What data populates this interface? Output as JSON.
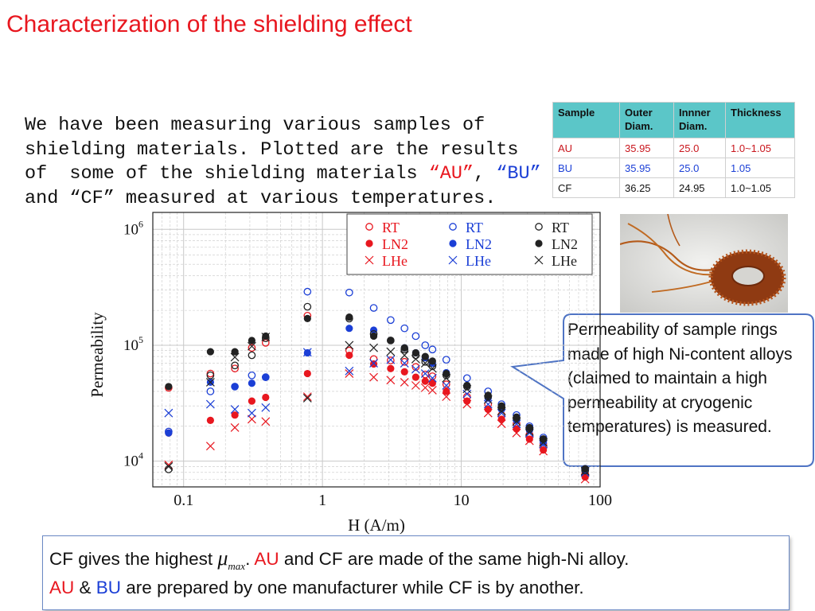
{
  "slide": {
    "title": "Characterization of the shielding effect",
    "intro_parts": [
      "We have been measuring various samples of shielding materials. Plotted are the results of  some of the shielding materials ",
      "“AU”",
      ", ",
      "“BU”",
      "  and “CF” measured at various temperatures."
    ]
  },
  "table": {
    "headers": [
      "Sample",
      "Outer Diam.",
      "Innner Diam.",
      "Thickness"
    ],
    "rows": [
      [
        "AU",
        "35.95",
        "25.0",
        "1.0~1.05"
      ],
      [
        "BU",
        "35.95",
        "25.0",
        "1.05"
      ],
      [
        "CF",
        "36.25",
        "24.95",
        "1.0~1.05"
      ]
    ]
  },
  "callout": {
    "text": "Permeability of sample rings made of high Ni-content alloys (claimed to maintain a high permeability at cryogenic temperatures) is measured."
  },
  "bottom": {
    "line1_a": "CF gives the highest ",
    "mu_symbol": "μ",
    "mu_sub": "max",
    "line1_b": ".   ",
    "au": "AU",
    "line1_c": " and CF are made of the same high-Ni alloy.",
    "line2_b": " & ",
    "bu": "BU",
    "line2_c": " are prepared by one manufacturer while CF is by another."
  },
  "colors": {
    "au": "#e8171f",
    "bu": "#1b3fd6",
    "cf": "#222222"
  },
  "chart_data": {
    "type": "scatter",
    "xlabel": "H (A/m)",
    "ylabel": "Permeability",
    "xscale": "log",
    "yscale": "log",
    "xlim": [
      0.06,
      100
    ],
    "ylim": [
      6000,
      1400000
    ],
    "xticks": [
      {
        "v": 0.1,
        "label": "0.1"
      },
      {
        "v": 1,
        "label": "1"
      },
      {
        "v": 10,
        "label": "10"
      },
      {
        "v": 100,
        "label": "100"
      }
    ],
    "yticks": [
      {
        "v": 10000,
        "base": "10",
        "exp": "4"
      },
      {
        "v": 100000,
        "base": "10",
        "exp": "5"
      },
      {
        "v": 1000000,
        "base": "10",
        "exp": "6"
      }
    ],
    "grid": true,
    "legend_position": "top-right",
    "series": [
      {
        "name": "RT",
        "sample": "AU",
        "color": "#e8171f",
        "marker": "open-circle",
        "points": [
          [
            0.078,
            43000
          ],
          [
            0.156,
            57000
          ],
          [
            0.234,
            63000
          ],
          [
            0.31,
            95000
          ],
          [
            0.39,
            105000
          ],
          [
            0.78,
            180000
          ],
          [
            1.56,
            90000
          ],
          [
            2.34,
            76000
          ],
          [
            3.1,
            74000
          ],
          [
            3.9,
            72000
          ],
          [
            4.7,
            65000
          ],
          [
            5.5,
            56000
          ],
          [
            6.2,
            54000
          ],
          [
            7.8,
            46000
          ],
          [
            11,
            36000
          ],
          [
            15.6,
            31000
          ],
          [
            19.5,
            25000
          ],
          [
            25,
            21000
          ],
          [
            31,
            17000
          ],
          [
            39,
            14000
          ],
          [
            78,
            7700
          ]
        ]
      },
      {
        "name": "LN2",
        "sample": "AU",
        "color": "#e8171f",
        "marker": "filled-circle",
        "points": [
          [
            0.078,
            17500
          ],
          [
            0.156,
            22500
          ],
          [
            0.234,
            25000
          ],
          [
            0.31,
            33000
          ],
          [
            0.39,
            35500
          ],
          [
            0.78,
            57000
          ],
          [
            1.56,
            82000
          ],
          [
            2.34,
            69000
          ],
          [
            3.1,
            63000
          ],
          [
            3.9,
            59000
          ],
          [
            4.7,
            53000
          ],
          [
            5.5,
            49000
          ],
          [
            6.2,
            47000
          ],
          [
            7.8,
            40000
          ],
          [
            11,
            33000
          ],
          [
            15.6,
            28000
          ],
          [
            19.5,
            23000
          ],
          [
            25,
            19000
          ],
          [
            31,
            15500
          ],
          [
            39,
            12500
          ],
          [
            78,
            7300
          ]
        ]
      },
      {
        "name": "LHe",
        "sample": "AU",
        "color": "#e8171f",
        "marker": "x",
        "points": [
          [
            0.078,
            9300
          ],
          [
            0.156,
            13500
          ],
          [
            0.234,
            19500
          ],
          [
            0.31,
            23000
          ],
          [
            0.39,
            22000
          ],
          [
            0.78,
            36000
          ],
          [
            1.56,
            57000
          ],
          [
            2.34,
            53000
          ],
          [
            3.1,
            50000
          ],
          [
            3.9,
            48000
          ],
          [
            4.7,
            45000
          ],
          [
            5.5,
            43000
          ],
          [
            6.2,
            41000
          ],
          [
            7.8,
            36000
          ],
          [
            11,
            31000
          ],
          [
            15.6,
            26000
          ],
          [
            19.5,
            21000
          ],
          [
            25,
            17500
          ],
          [
            31,
            15000
          ],
          [
            39,
            12200
          ],
          [
            78,
            7000
          ]
        ]
      },
      {
        "name": "RT",
        "sample": "BU",
        "color": "#1b3fd6",
        "marker": "open-circle",
        "points": [
          [
            0.078,
            18000
          ],
          [
            0.156,
            40000
          ],
          [
            0.234,
            44000
          ],
          [
            0.31,
            55000
          ],
          [
            0.39,
            53000
          ],
          [
            0.78,
            290000
          ],
          [
            1.56,
            285000
          ],
          [
            2.34,
            210000
          ],
          [
            3.1,
            165000
          ],
          [
            3.9,
            140000
          ],
          [
            4.7,
            120000
          ],
          [
            5.5,
            100000
          ],
          [
            6.2,
            92000
          ],
          [
            7.8,
            75000
          ],
          [
            11,
            52000
          ],
          [
            15.6,
            40000
          ],
          [
            19.5,
            31000
          ],
          [
            25,
            25000
          ],
          [
            31,
            20000
          ],
          [
            39,
            16000
          ],
          [
            78,
            8600
          ]
        ]
      },
      {
        "name": "LN2",
        "sample": "BU",
        "color": "#1b3fd6",
        "marker": "filled-circle",
        "points": [
          [
            0.078,
            17500
          ],
          [
            0.156,
            48000
          ],
          [
            0.234,
            44000
          ],
          [
            0.31,
            47000
          ],
          [
            0.39,
            53000
          ],
          [
            0.78,
            86000
          ],
          [
            1.56,
            140000
          ],
          [
            2.34,
            135000
          ],
          [
            3.1,
            110000
          ],
          [
            3.9,
            95000
          ],
          [
            4.7,
            86000
          ],
          [
            5.5,
            78000
          ],
          [
            6.2,
            70000
          ],
          [
            7.8,
            58000
          ],
          [
            11,
            45000
          ],
          [
            15.6,
            35000
          ],
          [
            19.5,
            28000
          ],
          [
            25,
            22500
          ],
          [
            31,
            18500
          ],
          [
            39,
            14500
          ],
          [
            78,
            8300
          ]
        ]
      },
      {
        "name": "LHe",
        "sample": "BU",
        "color": "#1b3fd6",
        "marker": "x",
        "points": [
          [
            0.078,
            26000
          ],
          [
            0.156,
            31000
          ],
          [
            0.234,
            28000
          ],
          [
            0.31,
            26000
          ],
          [
            0.39,
            29000
          ],
          [
            0.78,
            87000
          ],
          [
            1.56,
            60000
          ],
          [
            2.34,
            70000
          ],
          [
            3.1,
            75000
          ],
          [
            3.9,
            70000
          ],
          [
            4.7,
            62000
          ],
          [
            5.5,
            57000
          ],
          [
            6.2,
            52000
          ],
          [
            7.8,
            45000
          ],
          [
            11,
            38000
          ],
          [
            15.6,
            31000
          ],
          [
            19.5,
            26000
          ],
          [
            25,
            21000
          ],
          [
            31,
            17500
          ],
          [
            39,
            14000
          ],
          [
            78,
            8000
          ]
        ]
      },
      {
        "name": "RT",
        "sample": "CF",
        "color": "#222222",
        "marker": "open-circle",
        "points": [
          [
            0.078,
            8500
          ],
          [
            0.156,
            55000
          ],
          [
            0.234,
            67000
          ],
          [
            0.31,
            82000
          ],
          [
            0.39,
            115000
          ],
          [
            0.78,
            215000
          ],
          [
            1.56,
            170000
          ],
          [
            2.34,
            125000
          ],
          [
            3.1,
            110000
          ],
          [
            3.9,
            92000
          ],
          [
            4.7,
            82000
          ],
          [
            5.5,
            72000
          ],
          [
            6.2,
            66000
          ],
          [
            7.8,
            55000
          ],
          [
            11,
            44000
          ],
          [
            15.6,
            36000
          ],
          [
            19.5,
            29000
          ],
          [
            25,
            23500
          ],
          [
            31,
            19000
          ],
          [
            39,
            15500
          ],
          [
            78,
            8300
          ]
        ]
      },
      {
        "name": "LN2",
        "sample": "CF",
        "color": "#222222",
        "marker": "filled-circle",
        "points": [
          [
            0.078,
            44000
          ],
          [
            0.156,
            88000
          ],
          [
            0.234,
            88000
          ],
          [
            0.31,
            110000
          ],
          [
            0.39,
            120000
          ],
          [
            0.78,
            170000
          ],
          [
            1.56,
            175000
          ],
          [
            2.34,
            120000
          ],
          [
            3.1,
            110000
          ],
          [
            3.9,
            95000
          ],
          [
            4.7,
            86000
          ],
          [
            5.5,
            80000
          ],
          [
            6.2,
            73000
          ],
          [
            7.8,
            57000
          ],
          [
            11,
            45000
          ],
          [
            15.6,
            37000
          ],
          [
            19.5,
            30000
          ],
          [
            25,
            24000
          ],
          [
            31,
            19500
          ],
          [
            39,
            15500
          ],
          [
            78,
            8600
          ]
        ]
      },
      {
        "name": "LHe",
        "sample": "CF",
        "color": "#222222",
        "marker": "x",
        "points": [
          [
            0.078,
            9000
          ],
          [
            0.156,
            48000
          ],
          [
            0.234,
            79000
          ],
          [
            0.31,
            98000
          ],
          [
            0.39,
            118000
          ],
          [
            0.78,
            35000
          ],
          [
            1.56,
            100000
          ],
          [
            2.34,
            95000
          ],
          [
            3.1,
            88000
          ],
          [
            3.9,
            82000
          ],
          [
            4.7,
            76000
          ],
          [
            5.5,
            70000
          ],
          [
            6.2,
            63000
          ],
          [
            7.8,
            52000
          ],
          [
            11,
            42000
          ],
          [
            15.6,
            34000
          ],
          [
            19.5,
            27000
          ],
          [
            25,
            22000
          ],
          [
            31,
            18000
          ],
          [
            39,
            14500
          ],
          [
            78,
            8200
          ]
        ]
      }
    ]
  }
}
